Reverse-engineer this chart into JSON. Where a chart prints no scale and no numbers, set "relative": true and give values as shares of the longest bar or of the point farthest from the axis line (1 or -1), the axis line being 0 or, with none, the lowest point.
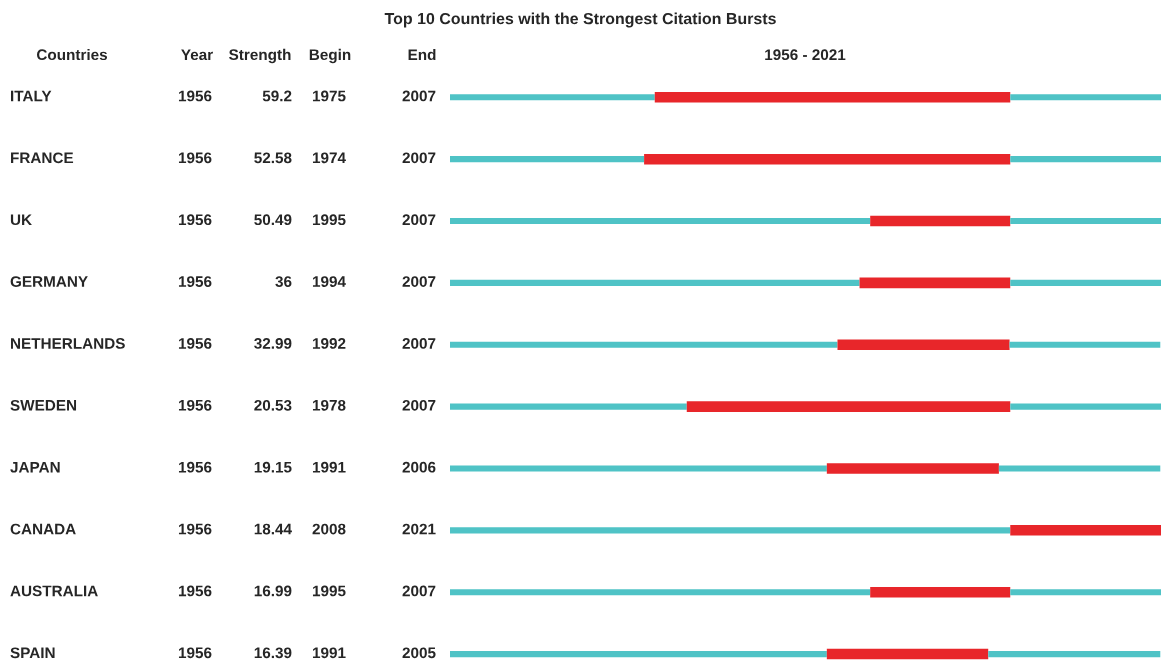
{
  "chart_data": {
    "type": "bar",
    "orientation": "horizontal",
    "title": "Top 10 Countries with the Strongest Citation Bursts",
    "categories": [
      "ITALY",
      "FRANCE",
      "UK",
      "GERMANY",
      "NETHERLANDS",
      "SWEDEN",
      "JAPAN",
      "CANADA",
      "AUSTRALIA",
      "SPAIN"
    ],
    "relative": true,
    "tick_labels": false,
    "stacked": true,
    "series": [
      {
        "color": "#4fc3c6",
        "values": [
          0.288,
          0.273,
          0.591,
          0.576,
          0.545,
          0.333,
          0.53,
          0.788,
          0.591,
          0.53
        ]
      },
      {
        "color": "#e8262a",
        "values": [
          0.5,
          0.515,
          0.197,
          0.212,
          0.242,
          0.455,
          0.242,
          0.212,
          0.197,
          0.227
        ]
      },
      {
        "color": "#4fc3c6",
        "values": [
          0.212,
          0.212,
          0.212,
          0.212,
          0.212,
          0.212,
          0.227,
          0,
          0.212,
          0.242
        ]
      }
    ],
    "annotations": [
      "Countries",
      "Year",
      "Strength",
      "Begin",
      "End",
      "1956 - 2021",
      "1956",
      "59.2",
      "1975",
      "2007",
      "1956",
      "52.58",
      "1974",
      "2007",
      "1956",
      "50.49",
      "1995",
      "2007",
      "1956",
      "36",
      "1994",
      "2007",
      "1956",
      "32.99",
      "1992",
      "2007",
      "1956",
      "20.53",
      "1978",
      "2007",
      "1956",
      "19.15",
      "1991",
      "2006",
      "1956",
      "18.44",
      "2008",
      "2021",
      "1956",
      "16.99",
      "1995",
      "2007",
      "1956",
      "16.39",
      "1991",
      "2005"
    ]
  }
}
